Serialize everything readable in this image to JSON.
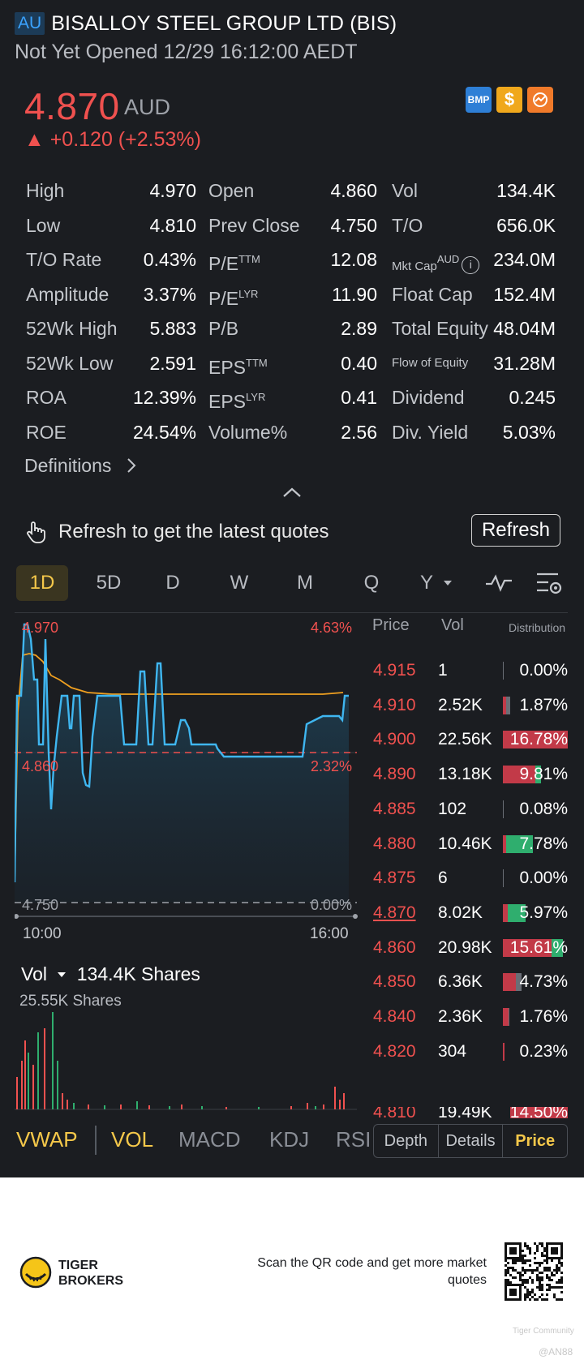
{
  "header": {
    "market_badge": "AU",
    "stock_name": "BISALLOY STEEL GROUP LTD (BIS)",
    "status": "Not Yet Opened 12/29 16:12:00 AEDT"
  },
  "quote": {
    "price": "4.870",
    "currency": "AUD",
    "change": "▲ +0.120 (+2.53%)",
    "badges": [
      "BMP",
      "$"
    ]
  },
  "stats": {
    "c1": [
      {
        "label": "High",
        "value": "4.970"
      },
      {
        "label": "Low",
        "value": "4.810"
      },
      {
        "label": "T/O Rate",
        "value": "0.43%"
      },
      {
        "label": "Amplitude",
        "value": "3.37%"
      },
      {
        "label": "52Wk High",
        "value": "5.883"
      },
      {
        "label": "52Wk Low",
        "value": "2.591"
      },
      {
        "label": "ROA",
        "value": "12.39%"
      },
      {
        "label": "ROE",
        "value": "24.54%"
      }
    ],
    "c2": [
      {
        "label": "Open",
        "sup": "",
        "value": "4.860"
      },
      {
        "label": "Prev Close",
        "sup": "",
        "value": "4.750"
      },
      {
        "label": "P/E",
        "sup": "TTM",
        "value": "12.08"
      },
      {
        "label": "P/E",
        "sup": "LYR",
        "value": "11.90"
      },
      {
        "label": "P/B",
        "sup": "",
        "value": "2.89"
      },
      {
        "label": "EPS",
        "sup": "TTM",
        "value": "0.40"
      },
      {
        "label": "EPS",
        "sup": "LYR",
        "value": "0.41"
      },
      {
        "label": "Volume%",
        "sup": "",
        "value": "2.56"
      }
    ],
    "c3": [
      {
        "label": "Vol",
        "sup": "",
        "value": "134.4K"
      },
      {
        "label": "T/O",
        "sup": "",
        "value": "656.0K"
      },
      {
        "label": "Mkt Cap",
        "sup": "AUD",
        "value": "234.0M"
      },
      {
        "label": "Float Cap",
        "sup": "",
        "value": "152.4M"
      },
      {
        "label": "Total Equity",
        "sup": "",
        "value": "48.04M"
      },
      {
        "label": "Flow of Equity",
        "sup": "",
        "value": "31.28M"
      },
      {
        "label": "Dividend",
        "sup": "",
        "value": "0.245"
      },
      {
        "label": "Div. Yield",
        "sup": "",
        "value": "5.03%"
      }
    ]
  },
  "definitions_label": "Definitions",
  "refresh": {
    "text": "Refresh to get the latest quotes",
    "button": "Refresh"
  },
  "tabs": [
    "1D",
    "5D",
    "D",
    "W",
    "M",
    "Q",
    "Y"
  ],
  "chart": {
    "y_max_label": "4.970",
    "y_max_pct": "4.63%",
    "open_label": "4.860",
    "open_pct": "2.32%",
    "y_min_label": "4.750",
    "y_min_pct": "0.00%",
    "x_start": "10:00",
    "x_end": "16:00",
    "colors": {
      "price": "#3fb6f0",
      "vwap": "#f0a020",
      "prev_close": "#f0514f"
    }
  },
  "chart_data": {
    "type": "line",
    "x_range": [
      "10:00",
      "16:00"
    ],
    "ylim": [
      4.75,
      4.97
    ],
    "series": [],
    "reference_lines": [
      {
        "value": 4.86
      },
      {
        "value": 4.75
      }
    ]
  },
  "orderbook": {
    "headers": {
      "price": "Price",
      "vol": "Vol",
      "dist": "Distribution"
    },
    "rows": [
      {
        "price": "4.915",
        "vol": "1",
        "pct": "0.00%",
        "sell": 0,
        "buy": 0
      },
      {
        "price": "4.910",
        "vol": "2.52K",
        "pct": "1.87%",
        "sell": 0.5,
        "buy": 0.5
      },
      {
        "price": "4.900",
        "vol": "22.56K",
        "pct": "16.78%",
        "sell": 1.0,
        "buy": 0
      },
      {
        "price": "4.890",
        "vol": "13.18K",
        "pct": "9.81%",
        "sell": 0.85,
        "buy": 0.15
      },
      {
        "price": "4.885",
        "vol": "102",
        "pct": "0.08%",
        "sell": 0,
        "buy": 0
      },
      {
        "price": "4.880",
        "vol": "10.46K",
        "pct": "7.78%",
        "sell": 0.1,
        "buy": 0.9
      },
      {
        "price": "4.875",
        "vol": "6",
        "pct": "0.00%",
        "sell": 0,
        "buy": 0
      },
      {
        "price": "4.870",
        "vol": "8.02K",
        "pct": "5.97%",
        "sell": 0.2,
        "buy": 0.8,
        "current": true
      },
      {
        "price": "4.860",
        "vol": "20.98K",
        "pct": "15.61%",
        "sell": 0.8,
        "buy": 0.2
      },
      {
        "price": "4.850",
        "vol": "6.36K",
        "pct": "4.73%",
        "sell": 0.7,
        "buy": 0.3
      },
      {
        "price": "4.840",
        "vol": "2.36K",
        "pct": "1.76%",
        "sell": 0.8,
        "buy": 0.2
      },
      {
        "price": "4.820",
        "vol": "304",
        "pct": "0.23%",
        "sell": 1.0,
        "buy": 0
      }
    ]
  },
  "volume": {
    "title": "Vol",
    "total": "134.4K Shares",
    "max_label": "25.55K Shares"
  },
  "indicators": [
    "VWAP",
    "VOL",
    "MACD",
    "KDJ",
    "RSI"
  ],
  "segments": [
    "Depth",
    "Details",
    "Price"
  ],
  "footer": {
    "brand_line1": "TIGER",
    "brand_line2": "BROKERS",
    "scan_text": "Scan the QR code and get more market quotes",
    "watermark1": "Tiger Community",
    "watermark2": "@AN88"
  }
}
